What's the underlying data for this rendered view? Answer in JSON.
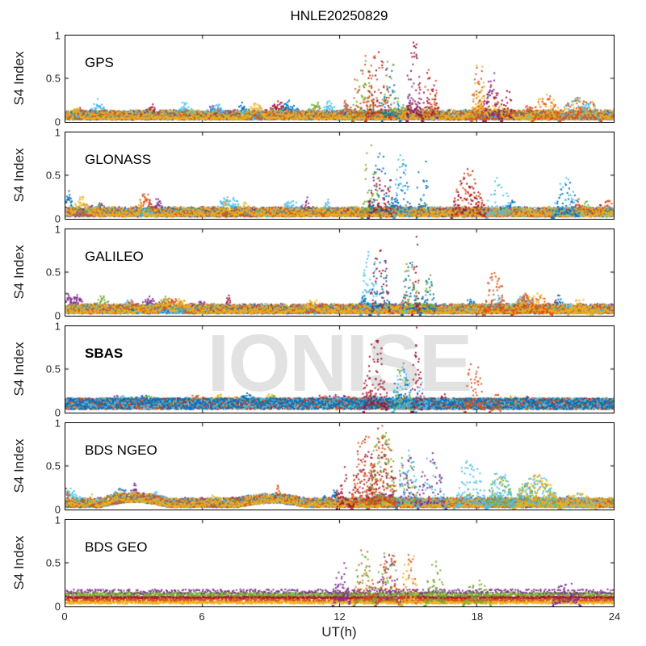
{
  "title": "HNLE20250829",
  "watermark": "IONISE",
  "colors": {
    "background": "#ffffff",
    "axis": "#000000",
    "tick_text": "#262626",
    "watermark": "#e2e2e2"
  },
  "chart_data": {
    "type": "scatter",
    "title": "HNLE20250829",
    "xlabel": "UT(h)",
    "ylabel": "S4 Index",
    "xlim": [
      0,
      24
    ],
    "ylim": [
      0,
      1
    ],
    "xticks": [
      0,
      6,
      12,
      18,
      24
    ],
    "xtick_labels": [
      "0",
      "6",
      "12",
      "18",
      "24"
    ],
    "yticks": [
      1,
      0.5,
      0
    ],
    "ytick_labels": [
      "1",
      "0.5",
      "0"
    ],
    "grid": false,
    "legend": "none",
    "marker": "square-dot",
    "palette": [
      "#0072BD",
      "#D95319",
      "#EDB120",
      "#7E2F8E",
      "#77AC30",
      "#4DBEEE",
      "#A2142F"
    ],
    "palette_names": [
      "blue",
      "orange",
      "yellow",
      "purple",
      "green",
      "cyan",
      "maroon"
    ],
    "panels": [
      {
        "label": "GPS",
        "label_weight": "normal",
        "seed": 11,
        "baseline": {
          "type": "mixed",
          "colors": [
            3,
            6,
            0,
            4,
            5,
            1,
            2
          ],
          "level": 0.08
        },
        "baseline_bumps": [
          {
            "t0": 1.1,
            "t1": 1.7,
            "amp": 0.15,
            "colors": [
              5
            ]
          },
          {
            "t0": 11.2,
            "t1": 11.8,
            "amp": 0.12,
            "colors": [
              5
            ]
          }
        ],
        "bursts": [
          {
            "t0": 12.55,
            "t1": 13.5,
            "peak": 0.85,
            "colors": [
              4,
              1
            ]
          },
          {
            "t0": 13.1,
            "t1": 14.2,
            "peak": 0.92,
            "colors": [
              6,
              1
            ]
          },
          {
            "t0": 13.8,
            "t1": 14.6,
            "peak": 0.75,
            "colors": [
              4,
              0
            ]
          },
          {
            "t0": 14.9,
            "t1": 15.55,
            "peak": 1.0,
            "colors": [
              3,
              6
            ],
            "n": 3
          },
          {
            "t0": 15.6,
            "t1": 16.3,
            "peak": 0.72,
            "colors": [
              1,
              6
            ]
          },
          {
            "t0": 17.75,
            "t1": 18.35,
            "peak": 0.78,
            "colors": [
              2,
              1
            ],
            "n": 3
          },
          {
            "t0": 18.3,
            "t1": 19.0,
            "peak": 0.65,
            "colors": [
              6,
              3
            ]
          },
          {
            "t0": 19.05,
            "t1": 19.6,
            "peak": 0.5,
            "colors": [
              6
            ]
          },
          {
            "t0": 20.4,
            "t1": 21.6,
            "peak": 0.32,
            "colors": [
              2,
              1
            ]
          },
          {
            "t0": 21.6,
            "t1": 23.4,
            "peak": 0.3,
            "colors": [
              2,
              5,
              1
            ]
          }
        ]
      },
      {
        "label": "GLONASS",
        "label_weight": "normal",
        "seed": 22,
        "baseline": {
          "type": "mixed",
          "colors": [
            3,
            6,
            0,
            4,
            5,
            1,
            2
          ],
          "level": 0.07
        },
        "baseline_bumps": [
          {
            "t0": 9.3,
            "t1": 10.5,
            "amp": 0.08,
            "colors": [
              5
            ]
          }
        ],
        "bursts": [
          {
            "t0": 12.95,
            "t1": 13.75,
            "peak": 1.0,
            "colors": [
              4
            ],
            "n": 3
          },
          {
            "t0": 13.2,
            "t1": 14.3,
            "peak": 0.88,
            "colors": [
              0,
              6
            ]
          },
          {
            "t0": 14.35,
            "t1": 15.05,
            "peak": 0.78,
            "colors": [
              0,
              5
            ]
          },
          {
            "t0": 15.35,
            "t1": 15.85,
            "peak": 0.95,
            "colors": [
              0
            ]
          },
          {
            "t0": 16.9,
            "t1": 18.35,
            "peak": 0.6,
            "colors": [
              1,
              6
            ]
          },
          {
            "t0": 18.4,
            "t1": 19.45,
            "peak": 0.55,
            "colors": [
              5
            ]
          },
          {
            "t0": 21.3,
            "t1": 22.45,
            "peak": 0.48,
            "colors": [
              5,
              0
            ]
          }
        ]
      },
      {
        "label": "GALILEO",
        "label_weight": "normal",
        "seed": 33,
        "baseline": {
          "type": "mixed",
          "colors": [
            3,
            6,
            0,
            4,
            5,
            1,
            2
          ],
          "level": 0.09
        },
        "baseline_bumps": [
          {
            "t0": 4.0,
            "t1": 5.2,
            "amp": 0.07,
            "colors": [
              1
            ]
          }
        ],
        "bursts": [
          {
            "t0": 12.9,
            "t1": 13.7,
            "peak": 0.88,
            "colors": [
              5
            ],
            "n": 3
          },
          {
            "t0": 13.3,
            "t1": 14.15,
            "peak": 0.9,
            "colors": [
              6,
              0
            ]
          },
          {
            "t0": 14.7,
            "t1": 15.45,
            "peak": 0.75,
            "colors": [
              4,
              0
            ]
          },
          {
            "t0": 15.15,
            "t1": 15.5,
            "peak": 1.0,
            "colors": [
              6
            ],
            "n": 3
          },
          {
            "t0": 15.5,
            "t1": 16.2,
            "peak": 0.52,
            "colors": [
              4,
              0
            ]
          },
          {
            "t0": 18.3,
            "t1": 19.2,
            "peak": 0.56,
            "colors": [
              1
            ],
            "n": 3
          },
          {
            "t0": 19.5,
            "t1": 21.3,
            "peak": 0.28,
            "colors": [
              2,
              1
            ]
          },
          {
            "t0": 22.0,
            "t1": 23.0,
            "peak": 0.2,
            "colors": [
              2
            ]
          }
        ]
      },
      {
        "label": "SBAS",
        "label_weight": "bold",
        "seed": 44,
        "baseline": {
          "type": "thick",
          "colors": [
            2,
            3,
            4,
            6,
            1,
            5,
            0
          ],
          "level": 0.1
        },
        "baseline_bumps": [],
        "bursts": [
          {
            "t0": 13.0,
            "t1": 14.05,
            "peak": 1.0,
            "colors": [
              6
            ],
            "n": 4
          },
          {
            "t0": 14.3,
            "t1": 15.15,
            "peak": 0.58,
            "colors": [
              0,
              4,
              5
            ]
          },
          {
            "t0": 15.15,
            "t1": 15.6,
            "peak": 1.0,
            "colors": [
              6
            ],
            "n": 4
          },
          {
            "t0": 15.3,
            "t1": 15.8,
            "peak": 0.45,
            "colors": [
              5
            ]
          },
          {
            "t0": 17.45,
            "t1": 18.3,
            "peak": 0.66,
            "colors": [
              1
            ],
            "n": 3
          },
          {
            "t0": 18.55,
            "t1": 19.0,
            "peak": 0.3,
            "colors": [
              1
            ]
          }
        ]
      },
      {
        "label": "BDS NGEO",
        "label_weight": "normal",
        "seed": 55,
        "baseline": {
          "type": "mixed",
          "colors": [
            3,
            6,
            0,
            4,
            5,
            1,
            2
          ],
          "level": 0.07
        },
        "baseline_bumps": [
          {
            "t0": 1.5,
            "t1": 4.5,
            "amp": 0.06
          },
          {
            "t0": 7.5,
            "t1": 10.5,
            "amp": 0.05
          }
        ],
        "bursts": [
          {
            "t0": 11.85,
            "t1": 12.5,
            "peak": 0.5,
            "colors": [
              6
            ]
          },
          {
            "t0": 12.5,
            "t1": 13.6,
            "peak": 0.95,
            "colors": [
              6,
              1
            ],
            "n": 3
          },
          {
            "t0": 13.2,
            "t1": 14.45,
            "peak": 1.0,
            "colors": [
              6,
              4,
              1
            ],
            "n": 3
          },
          {
            "t0": 14.45,
            "t1": 15.4,
            "peak": 0.72,
            "colors": [
              4,
              3,
              5
            ]
          },
          {
            "t0": 15.4,
            "t1": 16.6,
            "peak": 0.68,
            "colors": [
              5,
              3
            ]
          },
          {
            "t0": 17.0,
            "t1": 18.4,
            "peak": 0.62,
            "colors": [
              5
            ],
            "n": 3
          },
          {
            "t0": 18.4,
            "t1": 19.6,
            "peak": 0.45,
            "colors": [
              4,
              5
            ],
            "n": 3
          },
          {
            "t0": 19.6,
            "t1": 21.6,
            "peak": 0.4,
            "colors": [
              4,
              5,
              2
            ],
            "n": 3
          },
          {
            "t0": 21.6,
            "t1": 23.2,
            "peak": 0.22,
            "colors": [
              5,
              2
            ]
          }
        ]
      },
      {
        "label": "BDS GEO",
        "label_weight": "normal",
        "seed": 66,
        "baseline": {
          "type": "bands",
          "bands": [
            {
              "color": 2,
              "level": 0.04,
              "spread": 0.035,
              "step": 0.016
            },
            {
              "color": 1,
              "level": 0.08,
              "spread": 0.05,
              "step": 0.016
            },
            {
              "color": 6,
              "level": 0.1,
              "spread": 0.03,
              "step": 0.03
            },
            {
              "color": 4,
              "level": 0.135,
              "spread": 0.045,
              "step": 0.02
            },
            {
              "color": 3,
              "level": 0.165,
              "spread": 0.055,
              "step": 0.05
            }
          ]
        },
        "baseline_bumps": [],
        "bursts": [
          {
            "t0": 11.7,
            "t1": 12.45,
            "peak": 0.62,
            "colors": [
              3
            ],
            "n": 3
          },
          {
            "t0": 12.6,
            "t1": 13.55,
            "peak": 0.7,
            "colors": [
              1,
              4
            ]
          },
          {
            "t0": 13.55,
            "t1": 14.6,
            "peak": 0.73,
            "colors": [
              4,
              3,
              1
            ]
          },
          {
            "t0": 14.7,
            "t1": 15.35,
            "peak": 0.7,
            "colors": [
              1,
              2
            ]
          },
          {
            "t0": 15.7,
            "t1": 16.6,
            "peak": 0.52,
            "colors": [
              4
            ],
            "n": 3
          },
          {
            "t0": 17.4,
            "t1": 18.6,
            "peak": 0.32,
            "colors": [
              4
            ]
          },
          {
            "t0": 21.3,
            "t1": 22.5,
            "peak": 0.33,
            "colors": [
              3
            ]
          }
        ]
      }
    ]
  }
}
